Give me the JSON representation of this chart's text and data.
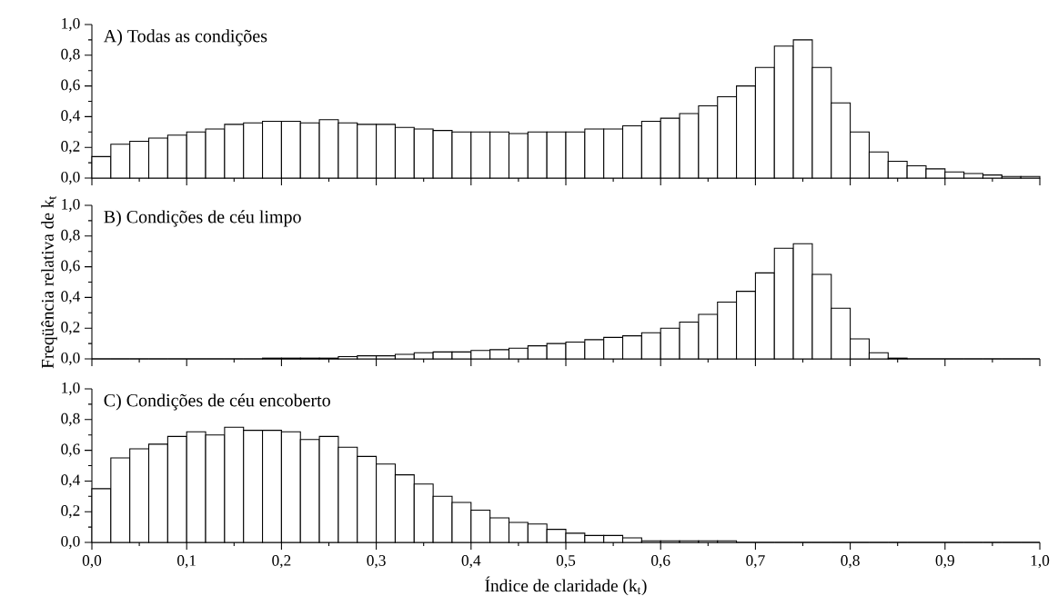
{
  "chart_data": [
    {
      "type": "histogram",
      "title": "A) Todas as condições",
      "color": "#000000",
      "bins": [
        0,
        0.02,
        0.04,
        0.06,
        0.08,
        0.1,
        0.12,
        0.14,
        0.16,
        0.18,
        0.2,
        0.22,
        0.24,
        0.26,
        0.28,
        0.3,
        0.32,
        0.34,
        0.36,
        0.38,
        0.4,
        0.42,
        0.44,
        0.46,
        0.48,
        0.5,
        0.52,
        0.54,
        0.56,
        0.58,
        0.6,
        0.62,
        0.64,
        0.66,
        0.68,
        0.7,
        0.72,
        0.74,
        0.76,
        0.78,
        0.8,
        0.82,
        0.84,
        0.86,
        0.88,
        0.9,
        0.92,
        0.94,
        0.96,
        0.98,
        1.0
      ],
      "values": [
        0.14,
        0.22,
        0.24,
        0.26,
        0.28,
        0.3,
        0.32,
        0.35,
        0.36,
        0.37,
        0.37,
        0.36,
        0.38,
        0.36,
        0.35,
        0.35,
        0.33,
        0.32,
        0.31,
        0.3,
        0.3,
        0.3,
        0.29,
        0.3,
        0.3,
        0.3,
        0.32,
        0.32,
        0.34,
        0.37,
        0.39,
        0.42,
        0.47,
        0.53,
        0.6,
        0.72,
        0.86,
        0.9,
        0.72,
        0.49,
        0.3,
        0.17,
        0.11,
        0.08,
        0.06,
        0.04,
        0.03,
        0.02,
        0.01,
        0.01
      ],
      "xlim": [
        0,
        1
      ],
      "ylim": [
        0,
        1
      ],
      "xticks": [
        {
          "value": 0,
          "label": null
        },
        {
          "value": 0.1,
          "label": null
        },
        {
          "value": 0.2,
          "label": null
        },
        {
          "value": 0.3,
          "label": null
        },
        {
          "value": 0.4,
          "label": null
        },
        {
          "value": 0.5,
          "label": null
        },
        {
          "value": 0.6,
          "label": null
        },
        {
          "value": 0.7,
          "label": null
        },
        {
          "value": 0.8,
          "label": null
        },
        {
          "value": 0.9,
          "label": null
        },
        {
          "value": 1.0,
          "label": null
        }
      ],
      "yticks": [
        {
          "value": 0,
          "label": "0,0"
        },
        {
          "value": 0.2,
          "label": "0,2"
        },
        {
          "value": 0.4,
          "label": "0,4"
        },
        {
          "value": 0.6,
          "label": "0,6"
        },
        {
          "value": 0.8,
          "label": "0,8"
        },
        {
          "value": 1.0,
          "label": "1,0"
        }
      ],
      "tick_labels": "y"
    },
    {
      "type": "histogram",
      "title": "B) Condições de céu limpo",
      "ylabel": "Freqüência relativa de k$_{t}$",
      "color": "#000000",
      "bins": [
        0,
        0.02,
        0.04,
        0.06,
        0.08,
        0.1,
        0.12,
        0.14,
        0.16,
        0.18,
        0.2,
        0.22,
        0.24,
        0.26,
        0.28,
        0.3,
        0.32,
        0.34,
        0.36,
        0.38,
        0.4,
        0.42,
        0.44,
        0.46,
        0.48,
        0.5,
        0.52,
        0.54,
        0.56,
        0.58,
        0.6,
        0.62,
        0.64,
        0.66,
        0.68,
        0.7,
        0.72,
        0.74,
        0.76,
        0.78,
        0.8,
        0.82,
        0.84,
        0.86,
        0.88,
        0.9,
        0.92,
        0.94,
        0.96,
        0.98,
        1.0
      ],
      "values": [
        0,
        0,
        0,
        0,
        0,
        0,
        0,
        0,
        0,
        0.005,
        0.005,
        0.005,
        0.005,
        0.015,
        0.02,
        0.02,
        0.03,
        0.04,
        0.045,
        0.045,
        0.055,
        0.06,
        0.07,
        0.085,
        0.1,
        0.11,
        0.125,
        0.14,
        0.15,
        0.17,
        0.2,
        0.24,
        0.29,
        0.37,
        0.44,
        0.56,
        0.72,
        0.75,
        0.55,
        0.33,
        0.13,
        0.04,
        0.005,
        0,
        0,
        0,
        0,
        0,
        0,
        0
      ],
      "xlim": [
        0,
        1
      ],
      "ylim": [
        0,
        1
      ],
      "xticks": [
        {
          "value": 0,
          "label": null
        },
        {
          "value": 0.1,
          "label": null
        },
        {
          "value": 0.2,
          "label": null
        },
        {
          "value": 0.3,
          "label": null
        },
        {
          "value": 0.4,
          "label": null
        },
        {
          "value": 0.5,
          "label": null
        },
        {
          "value": 0.6,
          "label": null
        },
        {
          "value": 0.7,
          "label": null
        },
        {
          "value": 0.8,
          "label": null
        },
        {
          "value": 0.9,
          "label": null
        },
        {
          "value": 1.0,
          "label": null
        }
      ],
      "yticks": [
        {
          "value": 0,
          "label": "0,0"
        },
        {
          "value": 0.2,
          "label": "0,2"
        },
        {
          "value": 0.4,
          "label": "0,4"
        },
        {
          "value": 0.6,
          "label": "0,6"
        },
        {
          "value": 0.8,
          "label": "0,8"
        },
        {
          "value": 1.0,
          "label": "1,0"
        }
      ],
      "tick_labels": "y"
    },
    {
      "type": "histogram",
      "title": "C) Condições de céu encoberto",
      "xlabel": "Índice de claridade (k$_{t}$)",
      "color": "#000000",
      "bins": [
        0,
        0.02,
        0.04,
        0.06,
        0.08,
        0.1,
        0.12,
        0.14,
        0.16,
        0.18,
        0.2,
        0.22,
        0.24,
        0.26,
        0.28,
        0.3,
        0.32,
        0.34,
        0.36,
        0.38,
        0.4,
        0.42,
        0.44,
        0.46,
        0.48,
        0.5,
        0.52,
        0.54,
        0.56,
        0.58,
        0.6,
        0.62,
        0.64,
        0.66,
        0.68,
        0.7,
        0.72,
        0.74,
        0.76,
        0.78,
        0.8,
        0.82,
        0.84,
        0.86,
        0.88,
        0.9,
        0.92,
        0.94,
        0.96,
        0.98,
        1.0
      ],
      "values": [
        0.35,
        0.55,
        0.61,
        0.64,
        0.69,
        0.72,
        0.7,
        0.75,
        0.73,
        0.73,
        0.72,
        0.67,
        0.69,
        0.62,
        0.56,
        0.51,
        0.44,
        0.38,
        0.3,
        0.26,
        0.21,
        0.16,
        0.13,
        0.12,
        0.085,
        0.06,
        0.045,
        0.045,
        0.03,
        0.01,
        0.01,
        0.01,
        0.01,
        0.01,
        0,
        0,
        0,
        0,
        0,
        0,
        0,
        0,
        0,
        0,
        0,
        0,
        0,
        0,
        0,
        0
      ],
      "xlim": [
        0,
        1
      ],
      "ylim": [
        0,
        1
      ],
      "xticks": [
        {
          "value": 0,
          "label": "0,0"
        },
        {
          "value": 0.1,
          "label": "0,1"
        },
        {
          "value": 0.2,
          "label": "0,2"
        },
        {
          "value": 0.3,
          "label": "0,3"
        },
        {
          "value": 0.4,
          "label": "0,4"
        },
        {
          "value": 0.5,
          "label": "0,5"
        },
        {
          "value": 0.6,
          "label": "0,6"
        },
        {
          "value": 0.7,
          "label": "0,7"
        },
        {
          "value": 0.8,
          "label": "0,8"
        },
        {
          "value": 0.9,
          "label": "0,9"
        },
        {
          "value": 1.0,
          "label": "1,0"
        }
      ],
      "yticks": [
        {
          "value": 0,
          "label": "0,0"
        },
        {
          "value": 0.2,
          "label": "0,2"
        },
        {
          "value": 0.4,
          "label": "0,4"
        },
        {
          "value": 0.6,
          "label": "0,6"
        },
        {
          "value": 0.8,
          "label": "0,8"
        },
        {
          "value": 1.0,
          "label": "1,0"
        }
      ]
    }
  ]
}
